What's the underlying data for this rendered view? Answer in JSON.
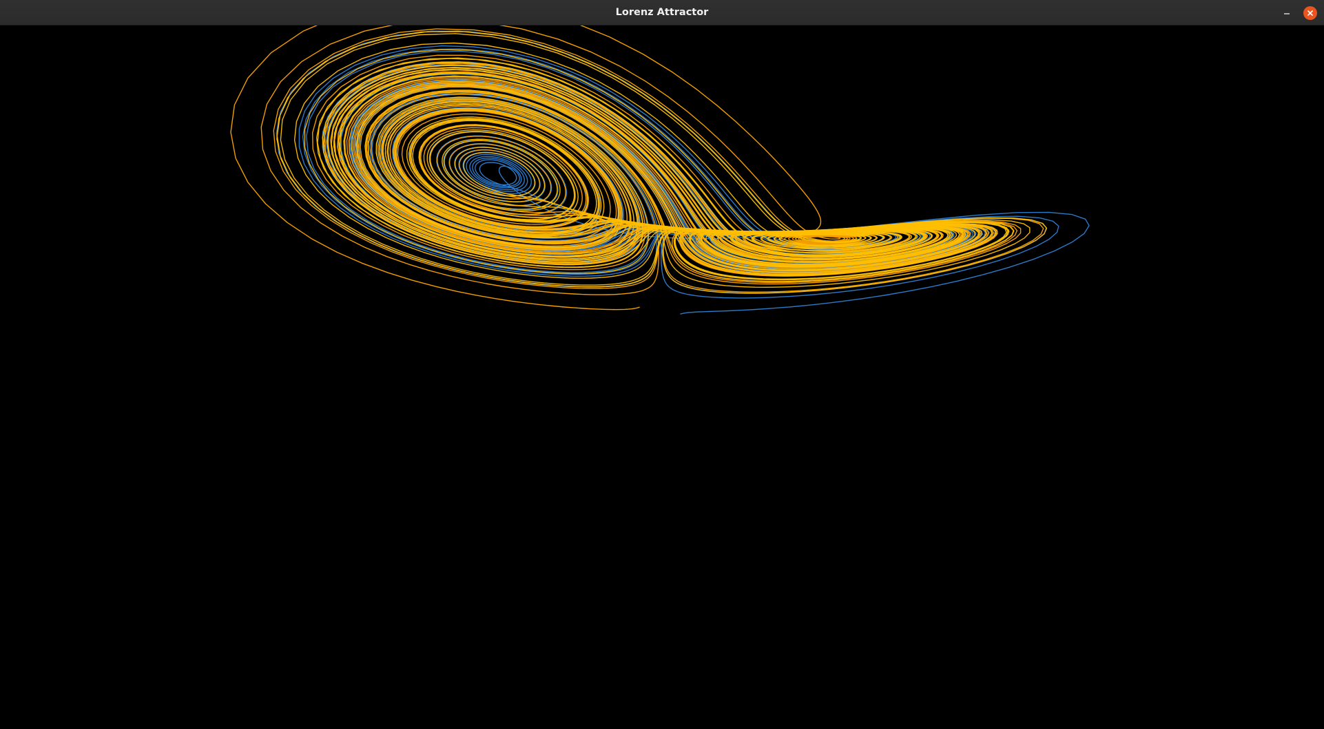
{
  "window": {
    "title": "Lorenz Attractor",
    "controls": {
      "minimize_icon": "minimize-icon",
      "close_icon": "close-icon",
      "close_color": "#E95420"
    }
  },
  "plot": {
    "background": "#000000",
    "trajectory_colors": [
      "#2F80D4",
      "#FFA500",
      "#FFC000"
    ]
  }
}
